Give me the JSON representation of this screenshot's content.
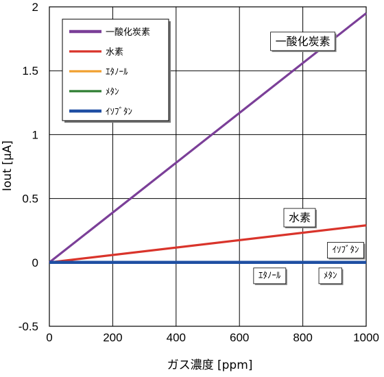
{
  "chart_data": {
    "type": "line",
    "xlabel": "ガス濃度 [ppm]",
    "ylabel": "Iout [μA]",
    "xlim": [
      0,
      1000
    ],
    "ylim": [
      -0.5,
      2
    ],
    "x_ticks": [
      "0",
      "200",
      "400",
      "600",
      "800",
      "1000"
    ],
    "y_ticks": [
      "-0.5",
      "0",
      "0.5",
      "1",
      "1.5",
      "2"
    ],
    "grid": true,
    "legend_position": "top-left",
    "series": [
      {
        "name": "一酸化炭素",
        "color": "#7b3f98",
        "x": [
          0,
          1000
        ],
        "y": [
          0,
          1.95
        ]
      },
      {
        "name": "水素",
        "color": "#d9342b",
        "x": [
          0,
          1000
        ],
        "y": [
          0,
          0.29
        ]
      },
      {
        "name": "ｴﾀﾉｰﾙ",
        "color": "#f0a030",
        "x": [
          0,
          1000
        ],
        "y": [
          0,
          0
        ]
      },
      {
        "name": "ﾒﾀﾝ",
        "color": "#2e7d32",
        "x": [
          0,
          1000
        ],
        "y": [
          0,
          0
        ]
      },
      {
        "name": "ｲｿﾌﾞﾀﾝ",
        "color": "#1f4fa3",
        "x": [
          0,
          1000
        ],
        "y": [
          0,
          0
        ]
      }
    ],
    "annotations": [
      {
        "text": "一酸化炭素",
        "x": 800,
        "y": 1.73,
        "size": 16
      },
      {
        "text": "水素",
        "x": 790,
        "y": 0.35,
        "size": 16
      },
      {
        "text": "ｲｿﾌﾞﾀﾝ",
        "x": 935,
        "y": 0.095,
        "size": 13
      },
      {
        "text": "ｴﾀﾉｰﾙ",
        "x": 695,
        "y": -0.105,
        "size": 13
      },
      {
        "text": "ﾒﾀﾝ",
        "x": 887,
        "y": -0.105,
        "size": 13
      }
    ]
  }
}
